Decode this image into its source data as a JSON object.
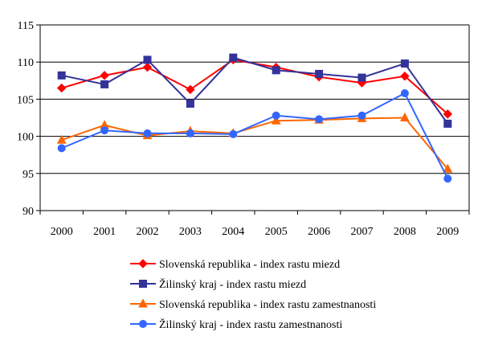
{
  "chart_data": {
    "type": "line",
    "categories": [
      "2000",
      "2001",
      "2002",
      "2003",
      "2004",
      "2005",
      "2006",
      "2007",
      "2008",
      "2009"
    ],
    "ylim": [
      90,
      115
    ],
    "yticks": [
      90,
      95,
      100,
      105,
      110,
      115
    ],
    "grid": "horizontal",
    "legend_position": "bottom",
    "series": [
      {
        "name": "Slovenská republika - index rastu miezd",
        "color": "#ff0000",
        "marker": "diamond",
        "values": [
          106.5,
          108.2,
          109.3,
          106.3,
          110.3,
          109.3,
          108.0,
          107.2,
          108.1,
          103.0
        ]
      },
      {
        "name": "Žilinský kraj - index rastu miezd",
        "color": "#333399",
        "marker": "square",
        "values": [
          108.2,
          107.0,
          110.3,
          104.4,
          110.6,
          108.9,
          108.4,
          107.9,
          109.8,
          101.7
        ]
      },
      {
        "name": "Slovenská republika - index rastu zamestnanosti",
        "color": "#ff6600",
        "marker": "triangle",
        "values": [
          99.5,
          101.5,
          100.1,
          100.7,
          100.4,
          102.1,
          102.2,
          102.4,
          102.5,
          95.6
        ]
      },
      {
        "name": "Žilinský kraj - index rastu zamestnanosti",
        "color": "#3366ff",
        "marker": "circle",
        "values": [
          98.4,
          100.8,
          100.4,
          100.4,
          100.3,
          102.8,
          102.3,
          102.8,
          105.8,
          94.3
        ]
      }
    ]
  }
}
